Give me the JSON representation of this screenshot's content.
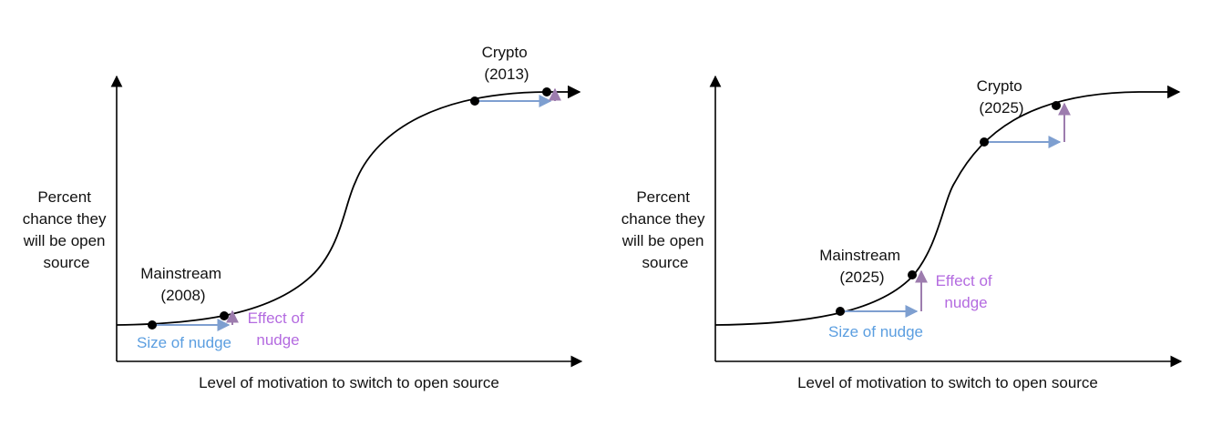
{
  "colors": {
    "axis": "#000000",
    "curve": "#000000",
    "nudge_arrow": "#7e9fd0",
    "effect_arrow": "#9d7cae",
    "nudge_text": "#5b9ee0",
    "effect_text": "#b46be0"
  },
  "panels": [
    {
      "ylabel": [
        "Percent",
        "chance they",
        "will be open",
        "source"
      ],
      "xlabel": "Level of motivation to switch to open source",
      "mainstream": [
        "Mainstream",
        "(2008)"
      ],
      "crypto": [
        "Crypto",
        "(2013)"
      ],
      "size_of_nudge": "Size of nudge",
      "effect_of_nudge": [
        "Effect of",
        "nudge"
      ]
    },
    {
      "ylabel": [
        "Percent",
        "chance they",
        "will be open",
        "source"
      ],
      "xlabel": "Level of motivation to switch to open source",
      "mainstream": [
        "Mainstream",
        "(2025)"
      ],
      "crypto": [
        "Crypto",
        "(2025)"
      ],
      "size_of_nudge": "Size of nudge",
      "effect_of_nudge": [
        "Effect of",
        "nudge"
      ]
    }
  ]
}
